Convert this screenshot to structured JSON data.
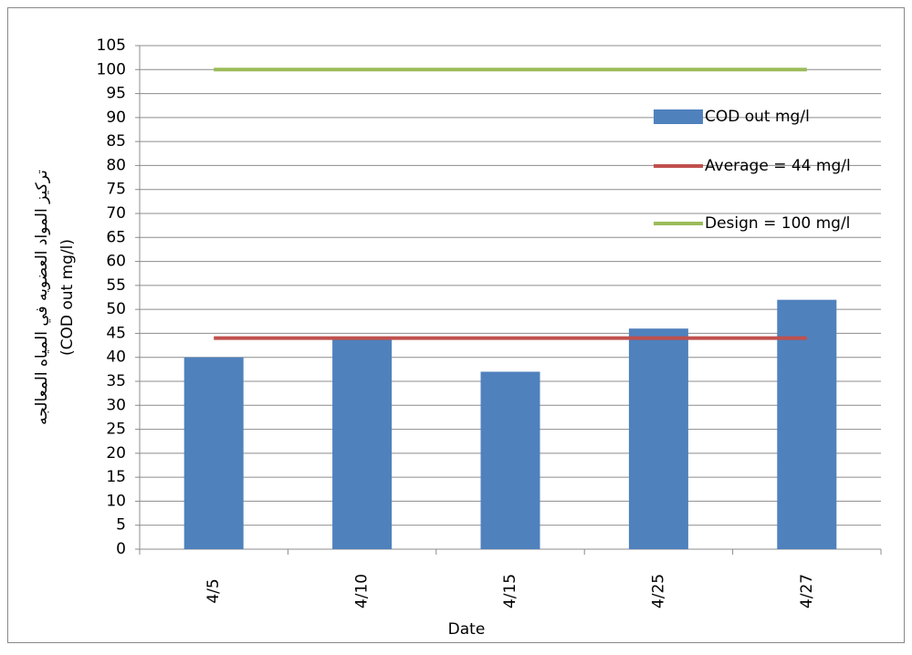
{
  "chart_data": {
    "type": "bar",
    "categories": [
      "4/5",
      "4/10",
      "4/15",
      "4/25",
      "4/27"
    ],
    "series": [
      {
        "name": "COD out mg/l",
        "type": "bar",
        "color": "#4f81bd",
        "values": [
          40,
          44,
          37,
          46,
          52
        ]
      },
      {
        "name": "Average = 44 mg/l",
        "type": "line",
        "color": "#c0504d",
        "values": [
          44,
          44,
          44,
          44,
          44
        ]
      },
      {
        "name": "Design = 100 mg/l",
        "type": "line",
        "color": "#9bbb59",
        "values": [
          100,
          100,
          100,
          100,
          100
        ]
      }
    ],
    "xlabel": "Date",
    "ylabel": [
      "تركيز المواد العضويه في المياه المعالجه",
      "(COD out mg/l)"
    ],
    "ylim": [
      0,
      105
    ],
    "yticks": [
      0,
      5,
      10,
      15,
      20,
      25,
      30,
      35,
      40,
      45,
      50,
      55,
      60,
      65,
      70,
      75,
      80,
      85,
      90,
      95,
      100,
      105
    ],
    "grid": true,
    "legend": "right"
  }
}
